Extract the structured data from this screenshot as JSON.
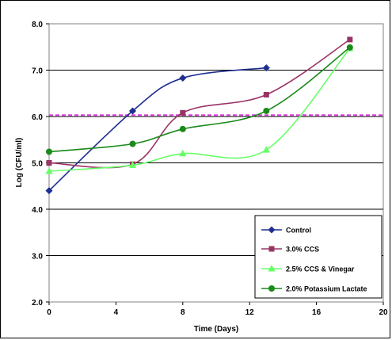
{
  "chart_data": {
    "type": "line",
    "xlabel": "Time (Days)",
    "ylabel": "Log (CFU/ml)",
    "xlim": [
      0,
      20
    ],
    "ylim": [
      2.0,
      8.0
    ],
    "x_ticks": [
      "0",
      "4",
      "8",
      "12",
      "16",
      "20"
    ],
    "y_ticks": [
      "2.0",
      "3.0",
      "4.0",
      "5.0",
      "6.0",
      "7.0",
      "8.0"
    ],
    "grid": "horizontal",
    "legend_position": "bottom-right",
    "reference_line": {
      "y": 6.03,
      "style": "dashed",
      "color": "#e040e0"
    },
    "series": [
      {
        "name": "Control",
        "color": "#1f2f8f",
        "marker": "diamond",
        "x": [
          0,
          5,
          8,
          13
        ],
        "y": [
          4.4,
          6.12,
          6.83,
          7.05
        ]
      },
      {
        "name": "3.0% CCS",
        "color": "#993366",
        "marker": "square",
        "x": [
          0,
          5,
          8,
          13,
          18
        ],
        "y": [
          5.0,
          4.97,
          6.08,
          6.47,
          7.66
        ]
      },
      {
        "name": "2.5% CCS & Vinegar",
        "color": "#66ff66",
        "marker": "triangle",
        "x": [
          0,
          5,
          8,
          13,
          18
        ],
        "y": [
          4.82,
          4.95,
          5.2,
          5.28,
          7.47
        ]
      },
      {
        "name": "2.0% Potassium Lactate",
        "color": "#1a8a1a",
        "marker": "circle",
        "x": [
          0,
          5,
          8,
          13,
          18
        ],
        "y": [
          5.24,
          5.41,
          5.73,
          6.12,
          7.49
        ]
      }
    ]
  }
}
